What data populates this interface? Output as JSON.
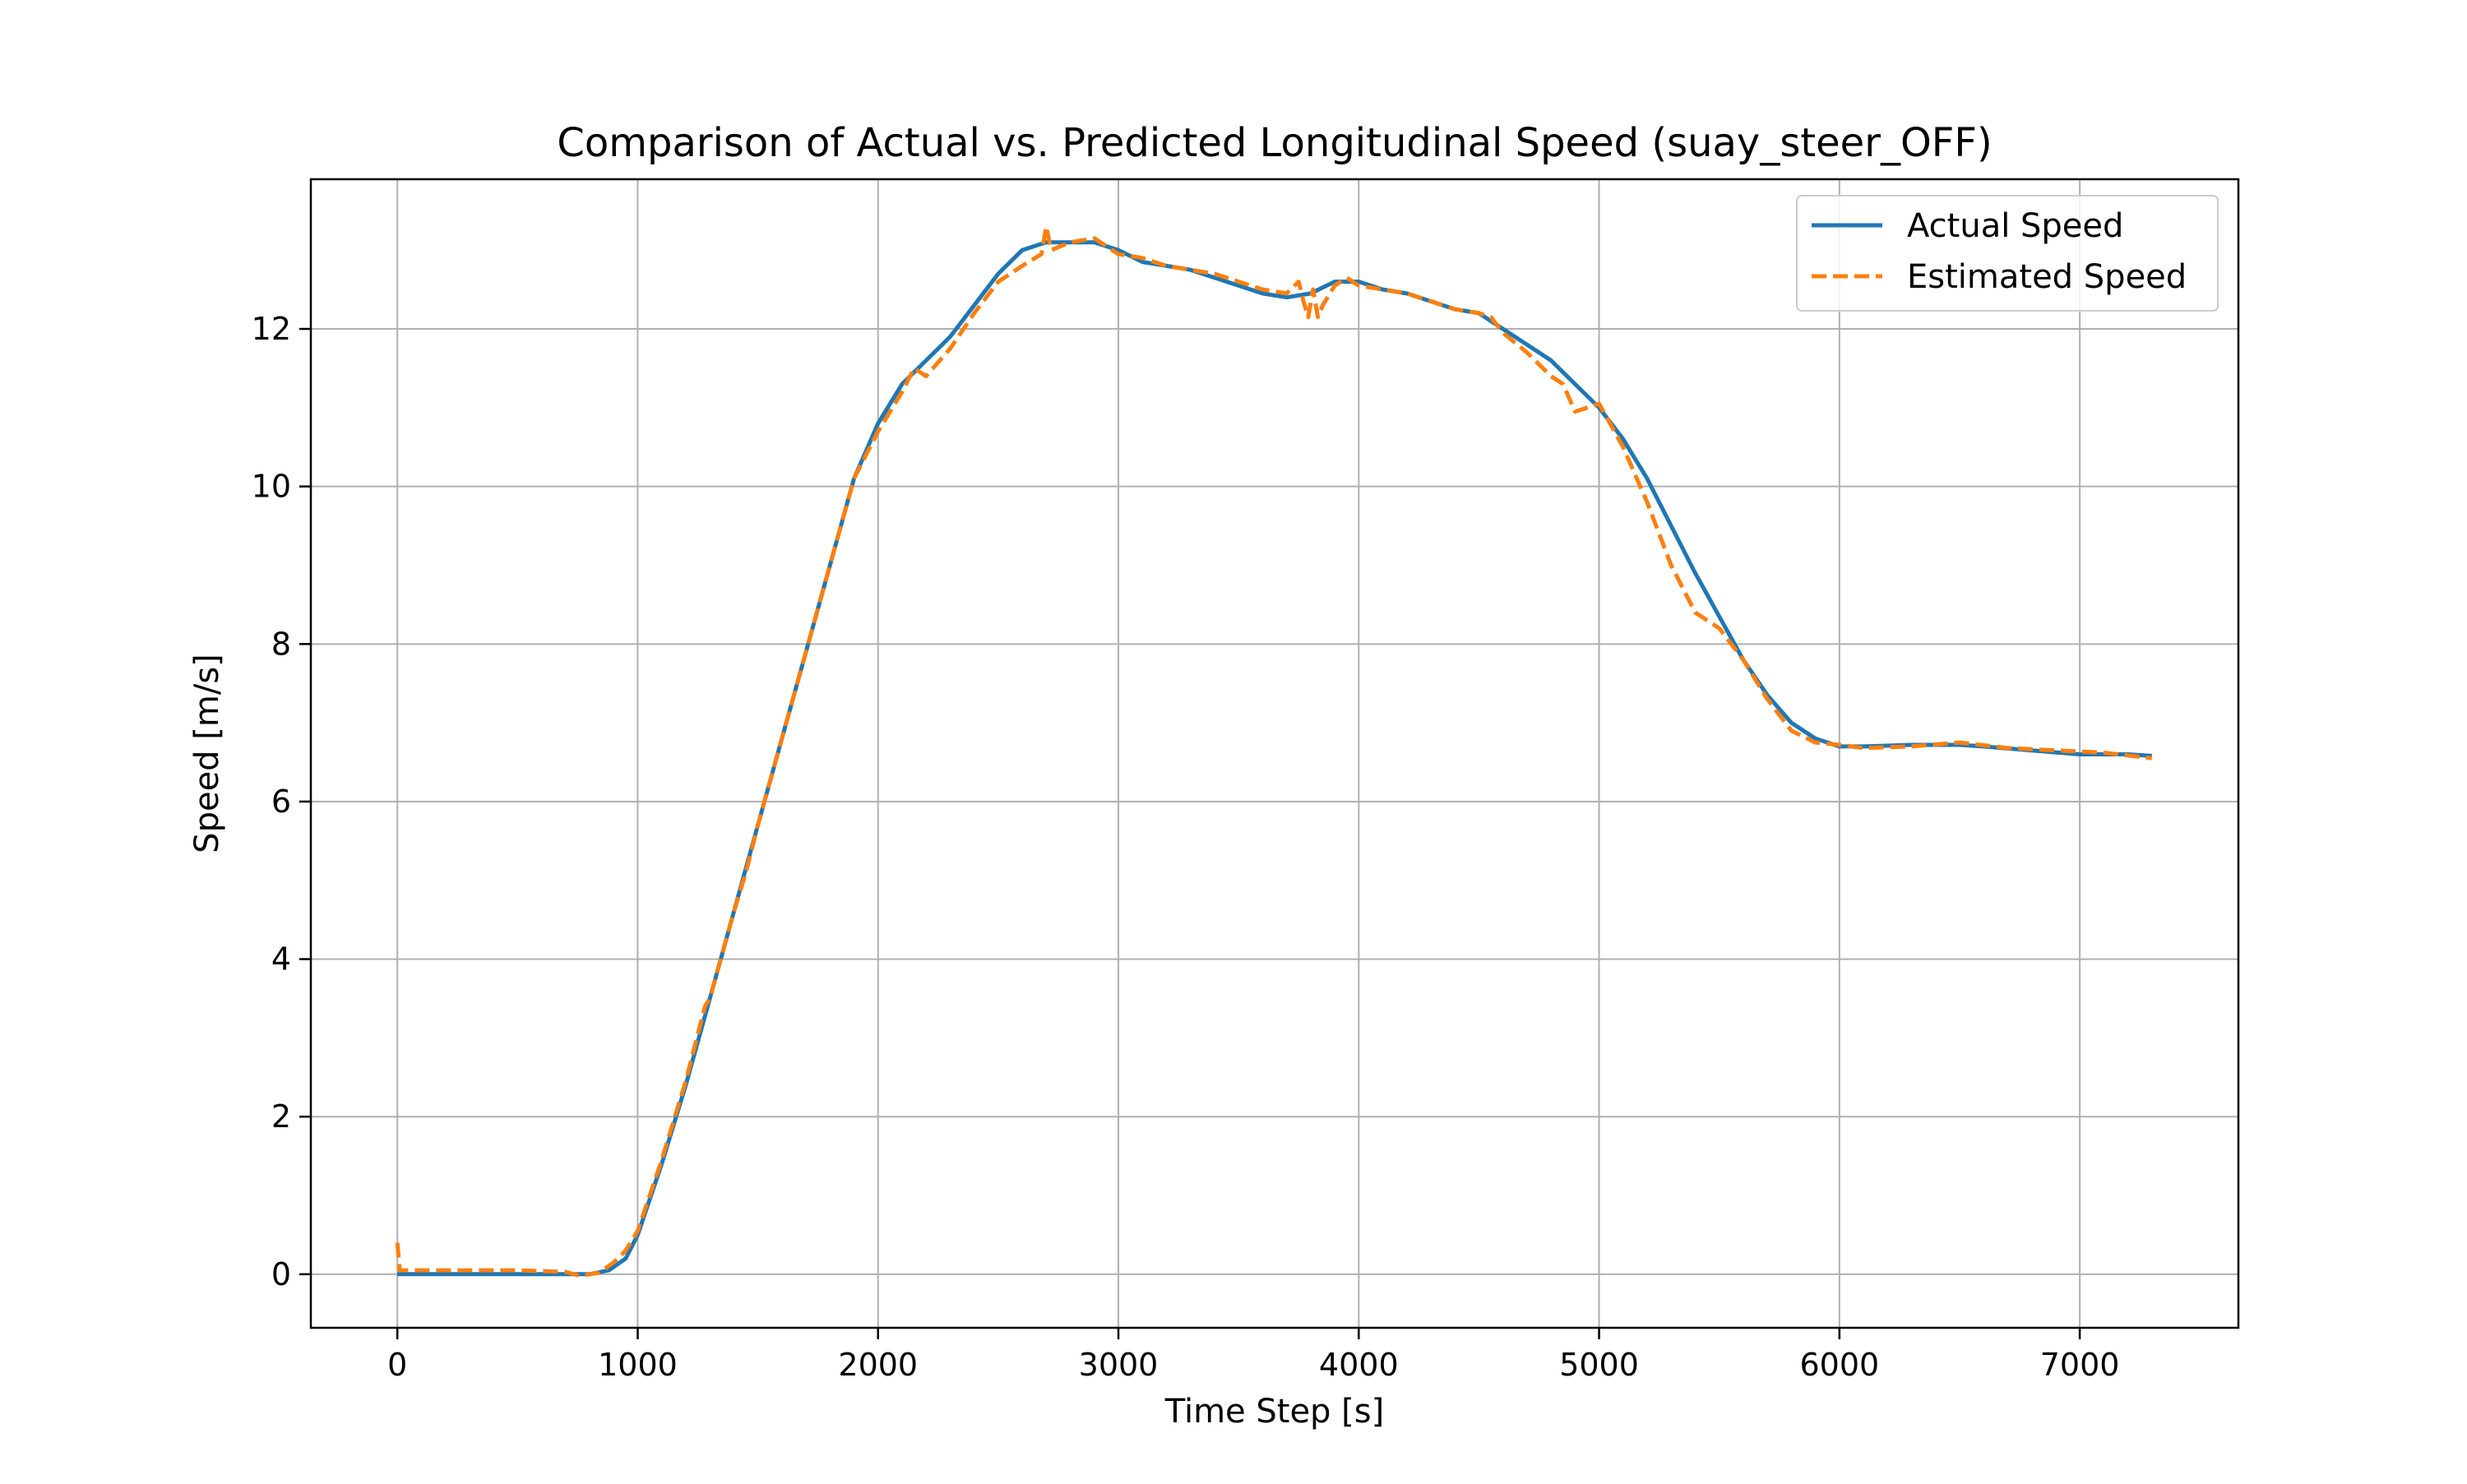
{
  "chart_data": {
    "type": "line",
    "title": "Comparison of Actual vs. Predicted Longitudinal Speed (suay_steer_OFF)",
    "xlabel": "Time Step [s]",
    "ylabel": "Speed [m/s]",
    "xlim": [
      -360,
      7660
    ],
    "ylim": [
      -0.68,
      13.9
    ],
    "xticks": [
      0,
      1000,
      2000,
      3000,
      4000,
      5000,
      6000,
      7000
    ],
    "yticks": [
      0,
      2,
      4,
      6,
      8,
      10,
      12
    ],
    "grid": true,
    "legend_position": "top-right",
    "series": [
      {
        "name": "Actual Speed",
        "color": "#1f77b4",
        "style": "solid",
        "points": [
          [
            0,
            0
          ],
          [
            200,
            0
          ],
          [
            400,
            0
          ],
          [
            600,
            0
          ],
          [
            800,
            0
          ],
          [
            880,
            0.05
          ],
          [
            950,
            0.2
          ],
          [
            1000,
            0.5
          ],
          [
            1100,
            1.4
          ],
          [
            1200,
            2.4
          ],
          [
            1300,
            3.5
          ],
          [
            1400,
            4.6
          ],
          [
            1500,
            5.7
          ],
          [
            1600,
            6.8
          ],
          [
            1700,
            7.9
          ],
          [
            1800,
            9.0
          ],
          [
            1900,
            10.1
          ],
          [
            2000,
            10.8
          ],
          [
            2100,
            11.3
          ],
          [
            2200,
            11.6
          ],
          [
            2300,
            11.9
          ],
          [
            2400,
            12.3
          ],
          [
            2500,
            12.7
          ],
          [
            2600,
            13.0
          ],
          [
            2700,
            13.1
          ],
          [
            2800,
            13.1
          ],
          [
            2900,
            13.1
          ],
          [
            3000,
            13.0
          ],
          [
            3100,
            12.85
          ],
          [
            3200,
            12.8
          ],
          [
            3300,
            12.75
          ],
          [
            3400,
            12.65
          ],
          [
            3500,
            12.55
          ],
          [
            3600,
            12.45
          ],
          [
            3700,
            12.4
          ],
          [
            3800,
            12.45
          ],
          [
            3900,
            12.6
          ],
          [
            4000,
            12.6
          ],
          [
            4100,
            12.5
          ],
          [
            4200,
            12.45
          ],
          [
            4300,
            12.35
          ],
          [
            4400,
            12.25
          ],
          [
            4500,
            12.2
          ],
          [
            4600,
            12.0
          ],
          [
            4700,
            11.8
          ],
          [
            4800,
            11.6
          ],
          [
            4900,
            11.3
          ],
          [
            5000,
            11.0
          ],
          [
            5100,
            10.6
          ],
          [
            5200,
            10.1
          ],
          [
            5300,
            9.5
          ],
          [
            5400,
            8.9
          ],
          [
            5500,
            8.35
          ],
          [
            5600,
            7.8
          ],
          [
            5700,
            7.35
          ],
          [
            5800,
            7.0
          ],
          [
            5900,
            6.8
          ],
          [
            6000,
            6.7
          ],
          [
            6100,
            6.7
          ],
          [
            6300,
            6.72
          ],
          [
            6500,
            6.72
          ],
          [
            6600,
            6.7
          ],
          [
            6800,
            6.65
          ],
          [
            7000,
            6.6
          ],
          [
            7200,
            6.6
          ],
          [
            7300,
            6.58
          ]
        ]
      },
      {
        "name": "Estimated Speed",
        "color": "#ff7f0e",
        "style": "dashed",
        "points": [
          [
            0,
            0.4
          ],
          [
            10,
            0.05
          ],
          [
            100,
            0.05
          ],
          [
            300,
            0.05
          ],
          [
            500,
            0.05
          ],
          [
            700,
            0.03
          ],
          [
            760,
            -0.02
          ],
          [
            840,
            0.02
          ],
          [
            900,
            0.15
          ],
          [
            950,
            0.3
          ],
          [
            1000,
            0.55
          ],
          [
            1100,
            1.45
          ],
          [
            1200,
            2.45
          ],
          [
            1280,
            3.4
          ],
          [
            1300,
            3.5
          ],
          [
            1400,
            4.6
          ],
          [
            1450,
            5.1
          ],
          [
            1500,
            5.7
          ],
          [
            1600,
            6.8
          ],
          [
            1700,
            7.9
          ],
          [
            1800,
            9.0
          ],
          [
            1900,
            10.1
          ],
          [
            2000,
            10.7
          ],
          [
            2100,
            11.2
          ],
          [
            2150,
            11.5
          ],
          [
            2200,
            11.4
          ],
          [
            2300,
            11.75
          ],
          [
            2400,
            12.2
          ],
          [
            2500,
            12.6
          ],
          [
            2600,
            12.8
          ],
          [
            2680,
            12.95
          ],
          [
            2700,
            13.3
          ],
          [
            2720,
            13.0
          ],
          [
            2800,
            13.1
          ],
          [
            2900,
            13.15
          ],
          [
            3000,
            12.95
          ],
          [
            3100,
            12.9
          ],
          [
            3200,
            12.8
          ],
          [
            3300,
            12.75
          ],
          [
            3400,
            12.7
          ],
          [
            3500,
            12.6
          ],
          [
            3600,
            12.5
          ],
          [
            3700,
            12.45
          ],
          [
            3750,
            12.6
          ],
          [
            3770,
            12.35
          ],
          [
            3790,
            12.15
          ],
          [
            3810,
            12.5
          ],
          [
            3830,
            12.15
          ],
          [
            3850,
            12.3
          ],
          [
            3900,
            12.55
          ],
          [
            3950,
            12.65
          ],
          [
            4000,
            12.55
          ],
          [
            4100,
            12.5
          ],
          [
            4200,
            12.45
          ],
          [
            4300,
            12.35
          ],
          [
            4400,
            12.25
          ],
          [
            4500,
            12.2
          ],
          [
            4550,
            12.15
          ],
          [
            4600,
            11.95
          ],
          [
            4700,
            11.7
          ],
          [
            4800,
            11.4
          ],
          [
            4850,
            11.3
          ],
          [
            4900,
            10.95
          ],
          [
            4950,
            11.0
          ],
          [
            5000,
            11.05
          ],
          [
            5100,
            10.5
          ],
          [
            5200,
            9.8
          ],
          [
            5300,
            9.0
          ],
          [
            5400,
            8.4
          ],
          [
            5500,
            8.2
          ],
          [
            5600,
            7.8
          ],
          [
            5700,
            7.3
          ],
          [
            5800,
            6.9
          ],
          [
            5900,
            6.75
          ],
          [
            6000,
            6.72
          ],
          [
            6100,
            6.68
          ],
          [
            6300,
            6.7
          ],
          [
            6500,
            6.75
          ],
          [
            6700,
            6.68
          ],
          [
            6900,
            6.65
          ],
          [
            7100,
            6.62
          ],
          [
            7300,
            6.55
          ]
        ]
      }
    ]
  }
}
